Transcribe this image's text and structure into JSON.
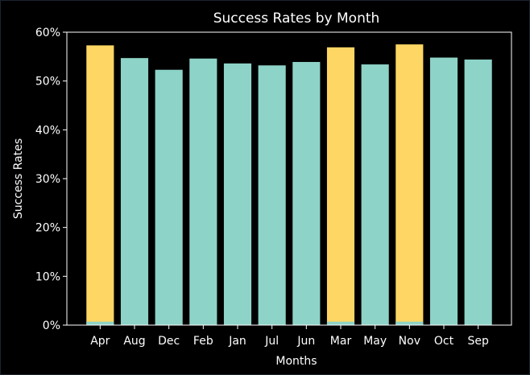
{
  "chart_data": {
    "type": "bar",
    "title": "Success Rates by Month",
    "xlabel": "Months",
    "ylabel": "Success Rates",
    "categories": [
      "Apr",
      "Aug",
      "Dec",
      "Feb",
      "Jan",
      "Jul",
      "Jun",
      "Mar",
      "May",
      "Nov",
      "Oct",
      "Sep"
    ],
    "values": [
      0.573,
      0.547,
      0.523,
      0.546,
      0.536,
      0.532,
      0.539,
      0.569,
      0.534,
      0.575,
      0.548,
      0.544
    ],
    "highlighted": [
      "Apr",
      "Mar",
      "Nov"
    ],
    "highlight_base": 0.007,
    "ylim": [
      0,
      0.6
    ],
    "yticks": [
      "0%",
      "10%",
      "20%",
      "30%",
      "40%",
      "50%",
      "60%"
    ],
    "grid": false,
    "legend": "none",
    "colors": {
      "background": "#000000",
      "bar": "#8dd3c7",
      "highlight": "#fdd663",
      "text": "#ffffff",
      "axis": "#ffffff"
    }
  }
}
